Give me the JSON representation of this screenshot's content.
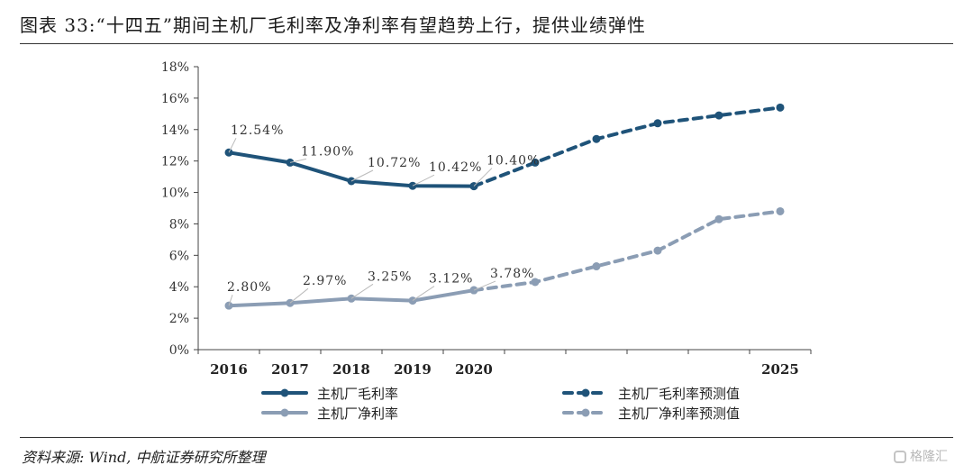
{
  "title": "图表 33:“十四五”期间主机厂毛利率及净利率有望趋势上行，提供业绩弹性",
  "source": "资料来源: Wind, 中航证券研究所整理",
  "watermark": "格隆汇",
  "chart_data": {
    "type": "line",
    "x": [
      2016,
      2017,
      2018,
      2019,
      2020,
      2021,
      2022,
      2023,
      2024,
      2025
    ],
    "x_tick_labels": [
      "2016",
      "2017",
      "2018",
      "2019",
      "2020",
      "",
      "",
      "",
      "",
      "2025"
    ],
    "ylim": [
      0,
      18
    ],
    "y_ticks": [
      0,
      2,
      4,
      6,
      8,
      10,
      12,
      14,
      16,
      18
    ],
    "y_tick_labels": [
      "0%",
      "2%",
      "4%",
      "6%",
      "8%",
      "10%",
      "12%",
      "14%",
      "16%",
      "18%"
    ],
    "grid": false,
    "legend_position": "bottom",
    "colors": {
      "gross": "#1f5379",
      "net": "#8b9db4"
    },
    "series": [
      {
        "name": "主机厂毛利率",
        "key": "gross",
        "style": "solid",
        "x": [
          2016,
          2017,
          2018,
          2019,
          2020
        ],
        "values": [
          12.54,
          11.9,
          10.72,
          10.42,
          10.4
        ]
      },
      {
        "name": "主机厂净利率",
        "key": "net",
        "style": "solid",
        "x": [
          2016,
          2017,
          2018,
          2019,
          2020
        ],
        "values": [
          2.8,
          2.97,
          3.25,
          3.12,
          3.78
        ]
      },
      {
        "name": "主机厂毛利率预测值",
        "key": "gross",
        "style": "dashed",
        "x": [
          2020,
          2021,
          2022,
          2023,
          2024,
          2025
        ],
        "values": [
          10.4,
          11.9,
          13.4,
          14.4,
          14.9,
          15.4
        ]
      },
      {
        "name": "主机厂净利率预测值",
        "key": "net",
        "style": "dashed",
        "x": [
          2020,
          2021,
          2022,
          2023,
          2024,
          2025
        ],
        "values": [
          3.78,
          4.3,
          5.3,
          6.3,
          8.3,
          8.8
        ]
      }
    ],
    "annotations": [
      {
        "text": "12.54%",
        "series": "gross",
        "x": 2016
      },
      {
        "text": "11.90%",
        "series": "gross",
        "x": 2017
      },
      {
        "text": "10.72%",
        "series": "gross",
        "x": 2018
      },
      {
        "text": "10.42%",
        "series": "gross",
        "x": 2019
      },
      {
        "text": "10.40%",
        "series": "gross",
        "x": 2020
      },
      {
        "text": "2.80%",
        "series": "net",
        "x": 2016
      },
      {
        "text": "2.97%",
        "series": "net",
        "x": 2017
      },
      {
        "text": "3.25%",
        "series": "net",
        "x": 2018
      },
      {
        "text": "3.12%",
        "series": "net",
        "x": 2019
      },
      {
        "text": "3.78%",
        "series": "net",
        "x": 2020
      }
    ]
  }
}
